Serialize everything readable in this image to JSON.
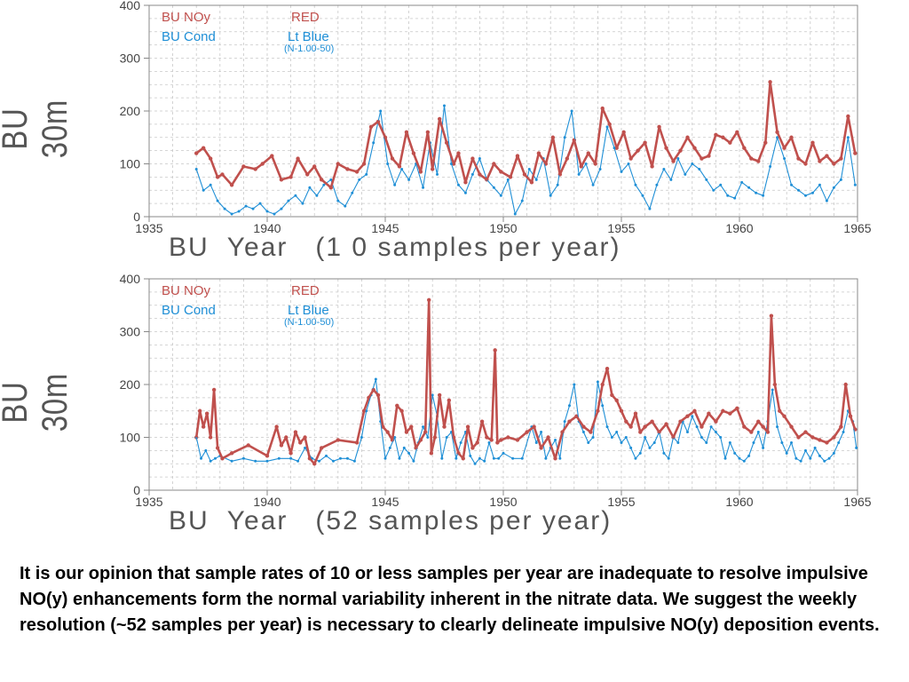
{
  "colors": {
    "red": "#c0504d",
    "blue": "#1f8fd6",
    "grid": "#c8c8c8",
    "axis": "#888888"
  },
  "caption": "It is our opinion that sample rates of 10 or less samples per year are inadequate to resolve impulsive NO(y) enhancements form the normal variability inherent in the nitrate data.  We suggest the weekly resolution (~52 samples per year) is necessary to clearly delineate impulsive NO(y) deposition events.",
  "chart_data": [
    {
      "type": "line",
      "ylabel": "BU  30m",
      "xlabel": "BU  Year   (1 0 samples per year)",
      "xlim": [
        1935,
        1965
      ],
      "ylim": [
        0,
        400
      ],
      "xticks": [
        "1935",
        "1940",
        "1945",
        "1950",
        "1955",
        "1960",
        "1965"
      ],
      "yticks": [
        "0",
        "100",
        "200",
        "300",
        "400"
      ],
      "grid": true,
      "legend": {
        "position": "top-left",
        "rows": [
          {
            "name": "BU  NOy",
            "color_label": "RED",
            "note": ""
          },
          {
            "name": "BU  Cond",
            "color_label": "Lt Blue",
            "note": "(N-1.00-50)"
          }
        ]
      },
      "series": [
        {
          "name": "BU  NOy",
          "color": "#c0504d",
          "x": [
            1937.0,
            1937.3,
            1937.6,
            1937.9,
            1938.1,
            1938.5,
            1939.0,
            1939.5,
            1939.8,
            1940.2,
            1940.6,
            1941.0,
            1941.3,
            1941.7,
            1942.0,
            1942.3,
            1942.7,
            1943.0,
            1943.4,
            1943.8,
            1944.1,
            1944.4,
            1944.7,
            1945.0,
            1945.3,
            1945.6,
            1945.9,
            1946.2,
            1946.5,
            1946.8,
            1947.0,
            1947.3,
            1947.6,
            1947.9,
            1948.1,
            1948.4,
            1948.7,
            1949.0,
            1949.3,
            1949.6,
            1949.9,
            1950.3,
            1950.6,
            1950.9,
            1951.2,
            1951.5,
            1951.8,
            1952.1,
            1952.4,
            1952.7,
            1953.0,
            1953.3,
            1953.6,
            1953.9,
            1954.2,
            1954.5,
            1954.8,
            1955.1,
            1955.4,
            1955.7,
            1956.0,
            1956.3,
            1956.6,
            1956.9,
            1957.2,
            1957.5,
            1957.8,
            1958.1,
            1958.4,
            1958.7,
            1959.0,
            1959.3,
            1959.6,
            1959.9,
            1960.2,
            1960.5,
            1960.8,
            1961.1,
            1961.3,
            1961.6,
            1961.9,
            1962.2,
            1962.5,
            1962.8,
            1963.1,
            1963.4,
            1963.7,
            1964.0,
            1964.3,
            1964.6,
            1964.9
          ],
          "y": [
            120,
            130,
            110,
            75,
            80,
            60,
            95,
            90,
            100,
            115,
            70,
            75,
            110,
            80,
            95,
            70,
            55,
            100,
            90,
            85,
            100,
            170,
            180,
            150,
            110,
            95,
            160,
            120,
            85,
            160,
            90,
            185,
            140,
            100,
            120,
            65,
            110,
            80,
            70,
            100,
            85,
            75,
            115,
            80,
            65,
            120,
            100,
            150,
            80,
            110,
            145,
            95,
            120,
            100,
            205,
            175,
            130,
            160,
            110,
            125,
            140,
            95,
            170,
            130,
            105,
            125,
            150,
            130,
            110,
            115,
            155,
            150,
            140,
            160,
            130,
            110,
            105,
            140,
            255,
            160,
            130,
            150,
            110,
            100,
            140,
            105,
            115,
            100,
            110,
            190,
            120
          ]
        },
        {
          "name": "BU  Cond",
          "color": "#1f8fd6",
          "x": [
            1937.0,
            1937.3,
            1937.6,
            1937.9,
            1938.2,
            1938.5,
            1938.8,
            1939.1,
            1939.4,
            1939.7,
            1940.0,
            1940.3,
            1940.6,
            1940.9,
            1941.2,
            1941.5,
            1941.8,
            1942.1,
            1942.4,
            1942.7,
            1943.0,
            1943.3,
            1943.6,
            1943.9,
            1944.2,
            1944.5,
            1944.8,
            1945.1,
            1945.4,
            1945.7,
            1946.0,
            1946.3,
            1946.6,
            1946.9,
            1947.2,
            1947.5,
            1947.8,
            1948.1,
            1948.4,
            1948.7,
            1949.0,
            1949.3,
            1949.6,
            1949.9,
            1950.2,
            1950.5,
            1950.8,
            1951.1,
            1951.4,
            1951.7,
            1952.0,
            1952.3,
            1952.6,
            1952.9,
            1953.2,
            1953.5,
            1953.8,
            1954.1,
            1954.4,
            1954.7,
            1955.0,
            1955.3,
            1955.6,
            1955.9,
            1956.2,
            1956.5,
            1956.8,
            1957.1,
            1957.4,
            1957.7,
            1958.0,
            1958.3,
            1958.6,
            1958.9,
            1959.2,
            1959.5,
            1959.8,
            1960.1,
            1960.4,
            1960.7,
            1961.0,
            1961.3,
            1961.6,
            1961.9,
            1962.2,
            1962.5,
            1962.8,
            1963.1,
            1963.4,
            1963.7,
            1964.0,
            1964.3,
            1964.6,
            1964.9
          ],
          "y": [
            90,
            50,
            60,
            30,
            15,
            5,
            10,
            20,
            15,
            25,
            10,
            5,
            15,
            30,
            40,
            25,
            55,
            40,
            60,
            70,
            30,
            20,
            45,
            70,
            80,
            140,
            200,
            100,
            60,
            90,
            70,
            100,
            55,
            140,
            80,
            210,
            100,
            60,
            45,
            80,
            110,
            70,
            55,
            40,
            70,
            5,
            30,
            90,
            70,
            110,
            40,
            60,
            150,
            200,
            80,
            100,
            60,
            90,
            170,
            130,
            85,
            100,
            60,
            40,
            15,
            60,
            90,
            70,
            110,
            80,
            100,
            90,
            70,
            50,
            60,
            40,
            35,
            65,
            55,
            45,
            40,
            95,
            150,
            110,
            60,
            50,
            40,
            45,
            60,
            30,
            55,
            70,
            150,
            60
          ]
        }
      ]
    },
    {
      "type": "line",
      "ylabel": "BU  30m",
      "xlabel": "BU  Year   (52 samples per year)",
      "xlim": [
        1935,
        1965
      ],
      "ylim": [
        0,
        400
      ],
      "xticks": [
        "1935",
        "1940",
        "1945",
        "1950",
        "1955",
        "1960",
        "1965"
      ],
      "yticks": [
        "0",
        "100",
        "200",
        "300",
        "400"
      ],
      "grid": true,
      "legend": {
        "position": "top-left",
        "rows": [
          {
            "name": "BU  NOy",
            "color_label": "RED",
            "note": ""
          },
          {
            "name": "BU  Cond",
            "color_label": "Lt Blue",
            "note": "(N-1.00-50)"
          }
        ]
      },
      "series": [
        {
          "name": "BU  NOy",
          "color": "#c0504d",
          "x": [
            1937.0,
            1937.15,
            1937.3,
            1937.45,
            1937.6,
            1937.75,
            1937.9,
            1938.1,
            1938.5,
            1939.2,
            1940.0,
            1940.4,
            1940.6,
            1940.8,
            1941.0,
            1941.2,
            1941.4,
            1941.6,
            1941.8,
            1942.0,
            1942.3,
            1943.0,
            1943.8,
            1944.1,
            1944.3,
            1944.5,
            1944.7,
            1944.9,
            1945.1,
            1945.3,
            1945.5,
            1945.7,
            1945.9,
            1946.1,
            1946.3,
            1946.5,
            1946.7,
            1946.85,
            1946.95,
            1947.1,
            1947.3,
            1947.5,
            1947.7,
            1947.9,
            1948.1,
            1948.3,
            1948.5,
            1948.7,
            1948.9,
            1949.1,
            1949.3,
            1949.5,
            1949.65,
            1949.75,
            1949.9,
            1950.2,
            1950.6,
            1951.0,
            1951.3,
            1951.6,
            1951.9,
            1952.2,
            1952.5,
            1952.8,
            1953.1,
            1953.4,
            1953.7,
            1954.0,
            1954.2,
            1954.4,
            1954.6,
            1954.8,
            1955.0,
            1955.2,
            1955.4,
            1955.6,
            1955.8,
            1956.0,
            1956.3,
            1956.6,
            1956.9,
            1957.2,
            1957.5,
            1957.8,
            1958.1,
            1958.4,
            1958.7,
            1959.0,
            1959.3,
            1959.6,
            1959.9,
            1960.2,
            1960.5,
            1960.8,
            1961.0,
            1961.2,
            1961.35,
            1961.5,
            1961.7,
            1961.9,
            1962.2,
            1962.5,
            1962.8,
            1963.1,
            1963.4,
            1963.7,
            1964.0,
            1964.3,
            1964.5,
            1964.7,
            1964.9
          ],
          "y": [
            100,
            150,
            120,
            145,
            100,
            190,
            80,
            60,
            70,
            85,
            65,
            120,
            85,
            100,
            70,
            110,
            90,
            100,
            60,
            50,
            80,
            95,
            90,
            150,
            175,
            190,
            180,
            120,
            110,
            95,
            160,
            150,
            110,
            120,
            80,
            95,
            110,
            360,
            70,
            100,
            180,
            120,
            170,
            100,
            70,
            60,
            120,
            80,
            90,
            130,
            100,
            95,
            265,
            90,
            95,
            100,
            95,
            110,
            120,
            80,
            100,
            60,
            110,
            130,
            140,
            120,
            110,
            150,
            200,
            230,
            180,
            170,
            150,
            130,
            120,
            145,
            110,
            120,
            130,
            110,
            125,
            100,
            130,
            140,
            150,
            120,
            145,
            130,
            150,
            145,
            155,
            120,
            110,
            130,
            120,
            110,
            330,
            200,
            150,
            140,
            120,
            100,
            110,
            100,
            95,
            90,
            100,
            120,
            200,
            140,
            115
          ]
        },
        {
          "name": "BU  Cond",
          "color": "#1f8fd6",
          "x": [
            1937.0,
            1937.2,
            1937.4,
            1937.6,
            1937.8,
            1938.0,
            1938.5,
            1939.0,
            1939.5,
            1940.0,
            1940.5,
            1941.0,
            1941.3,
            1941.6,
            1941.9,
            1942.2,
            1942.5,
            1942.8,
            1943.1,
            1943.4,
            1943.7,
            1944.0,
            1944.2,
            1944.4,
            1944.6,
            1944.8,
            1945.0,
            1945.2,
            1945.4,
            1945.6,
            1945.8,
            1946.0,
            1946.2,
            1946.4,
            1946.6,
            1946.8,
            1947.0,
            1947.2,
            1947.4,
            1947.6,
            1947.8,
            1948.0,
            1948.2,
            1948.4,
            1948.6,
            1948.8,
            1949.0,
            1949.2,
            1949.4,
            1949.6,
            1949.8,
            1950.0,
            1950.4,
            1950.8,
            1951.2,
            1951.4,
            1951.6,
            1951.8,
            1952.0,
            1952.2,
            1952.4,
            1952.6,
            1952.8,
            1953.0,
            1953.2,
            1953.4,
            1953.6,
            1953.8,
            1954.0,
            1954.2,
            1954.4,
            1954.6,
            1954.8,
            1955.0,
            1955.2,
            1955.4,
            1955.6,
            1955.8,
            1956.0,
            1956.2,
            1956.4,
            1956.6,
            1956.8,
            1957.0,
            1957.2,
            1957.4,
            1957.6,
            1957.8,
            1958.0,
            1958.2,
            1958.4,
            1958.6,
            1958.8,
            1959.0,
            1959.2,
            1959.4,
            1959.6,
            1959.8,
            1960.0,
            1960.2,
            1960.4,
            1960.6,
            1960.8,
            1961.0,
            1961.2,
            1961.4,
            1961.6,
            1961.8,
            1962.0,
            1962.2,
            1962.4,
            1962.6,
            1962.8,
            1963.0,
            1963.2,
            1963.4,
            1963.6,
            1963.8,
            1964.0,
            1964.2,
            1964.4,
            1964.6,
            1964.8,
            1964.95
          ],
          "y": [
            100,
            60,
            75,
            55,
            60,
            65,
            55,
            60,
            55,
            55,
            60,
            60,
            55,
            80,
            60,
            55,
            65,
            55,
            60,
            60,
            55,
            100,
            150,
            180,
            210,
            130,
            60,
            80,
            100,
            60,
            80,
            70,
            55,
            90,
            120,
            100,
            180,
            140,
            60,
            100,
            110,
            60,
            90,
            110,
            65,
            50,
            60,
            55,
            90,
            60,
            60,
            70,
            60,
            60,
            120,
            90,
            110,
            60,
            80,
            95,
            60,
            130,
            160,
            200,
            130,
            110,
            90,
            100,
            205,
            160,
            120,
            100,
            110,
            90,
            100,
            80,
            60,
            70,
            100,
            80,
            90,
            110,
            70,
            60,
            100,
            90,
            130,
            110,
            140,
            120,
            100,
            90,
            120,
            110,
            100,
            60,
            90,
            70,
            60,
            55,
            65,
            90,
            110,
            80,
            130,
            190,
            120,
            90,
            70,
            90,
            60,
            55,
            75,
            60,
            80,
            65,
            55,
            60,
            70,
            90,
            110,
            150,
            130,
            80
          ]
        }
      ]
    }
  ]
}
